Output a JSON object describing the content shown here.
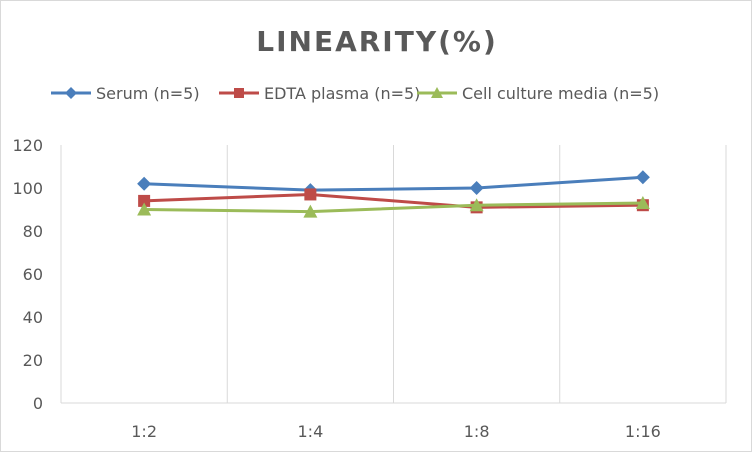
{
  "chart_data": {
    "type": "line",
    "title": "LINEARITY(%)",
    "categories": [
      "1:2",
      "1:4",
      "1:8",
      "1:16"
    ],
    "ylim": [
      0,
      120
    ],
    "yticks": [
      0,
      20,
      40,
      60,
      80,
      100,
      120
    ],
    "grid": "vertical",
    "legend": "top",
    "series": [
      {
        "name": "Serum (n=5)",
        "color": "#4a7ebb",
        "marker": "diamond",
        "values": [
          102,
          99,
          100,
          105
        ]
      },
      {
        "name": "EDTA plasma (n=5)",
        "color": "#be4b48",
        "marker": "square",
        "values": [
          94,
          97,
          91,
          92
        ]
      },
      {
        "name": "Cell culture media (n=5)",
        "color": "#9bbb59",
        "marker": "triangle",
        "values": [
          90,
          89,
          92,
          93
        ]
      }
    ]
  }
}
